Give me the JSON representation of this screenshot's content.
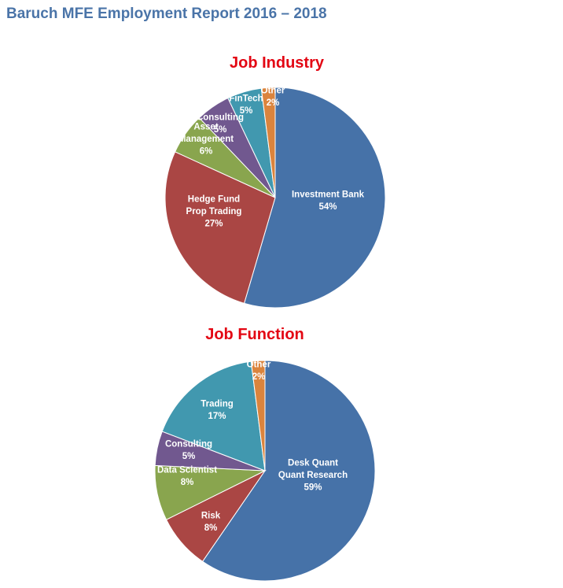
{
  "page": {
    "title": "Baruch MFE Employment Report 2016 – 2018"
  },
  "chart_data": [
    {
      "type": "pie",
      "title": "Job Industry",
      "slices": [
        {
          "label": [
            "Investment Bank"
          ],
          "value": 54,
          "value_label": "54%",
          "color": "#4672a8"
        },
        {
          "label": [
            "Hedge Fund",
            "Prop Trading"
          ],
          "value": 27,
          "value_label": "27%",
          "color": "#aa4644"
        },
        {
          "label": [
            "Asset",
            "Management"
          ],
          "value": 6,
          "value_label": "6%",
          "color": "#89a54e"
        },
        {
          "label": [
            "Consulting"
          ],
          "value": 5,
          "value_label": "5%",
          "color": "#71588f"
        },
        {
          "label": [
            "FinTech"
          ],
          "value": 5,
          "value_label": "5%",
          "color": "#4198af"
        },
        {
          "label": [
            "Other"
          ],
          "value": 2,
          "value_label": "2%",
          "color": "#db843d"
        }
      ]
    },
    {
      "type": "pie",
      "title": "Job Function",
      "slices": [
        {
          "label": [
            "Desk Quant",
            "Quant Research"
          ],
          "value": 59,
          "value_label": "59%",
          "color": "#4672a8"
        },
        {
          "label": [
            "Risk"
          ],
          "value": 8,
          "value_label": "8%",
          "color": "#aa4644"
        },
        {
          "label": [
            "Data Scientist"
          ],
          "value": 8,
          "value_label": "8%",
          "color": "#89a54e"
        },
        {
          "label": [
            "Consulting"
          ],
          "value": 5,
          "value_label": "5%",
          "color": "#71588f"
        },
        {
          "label": [
            "Trading"
          ],
          "value": 17,
          "value_label": "17%",
          "color": "#4198af"
        },
        {
          "label": [
            "Other"
          ],
          "value": 2,
          "value_label": "2%",
          "color": "#db843d"
        }
      ]
    }
  ]
}
